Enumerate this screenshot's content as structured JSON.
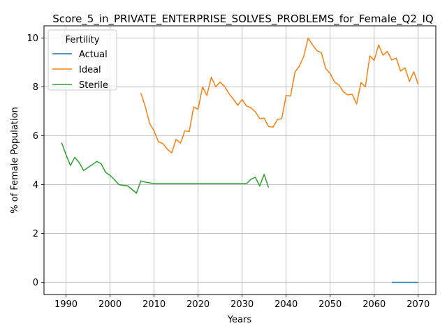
{
  "chart_data": {
    "type": "line",
    "title": "Score_5_in_PRIVATE_ENTERPRISE_SOLVES_PROBLEMS_for_Female_Q2_IQ",
    "xlabel": "Years",
    "ylabel": "% of Female Population",
    "xlim": [
      1985,
      2074
    ],
    "ylim": [
      -0.5,
      10.5
    ],
    "x_ticks": [
      1990,
      2000,
      2010,
      2020,
      2030,
      2040,
      2050,
      2060,
      2070
    ],
    "y_ticks": [
      0,
      2,
      4,
      6,
      8,
      10
    ],
    "grid": true,
    "legend": {
      "title": "Fertility",
      "placement": "top-left"
    },
    "series": [
      {
        "name": "Actual",
        "color": "#1f77b4",
        "points": [
          [
            2064,
            0.0
          ],
          [
            2070,
            0.0
          ]
        ]
      },
      {
        "name": "Ideal",
        "color": "#ff7f0e",
        "points": [
          [
            2007,
            7.75
          ],
          [
            2008,
            7.2
          ],
          [
            2009,
            6.5
          ],
          [
            2010,
            6.2
          ],
          [
            2011,
            5.75
          ],
          [
            2012,
            5.68
          ],
          [
            2013,
            5.45
          ],
          [
            2014,
            5.3
          ],
          [
            2015,
            5.85
          ],
          [
            2016,
            5.7
          ],
          [
            2017,
            6.2
          ],
          [
            2018,
            6.18
          ],
          [
            2019,
            7.18
          ],
          [
            2020,
            7.08
          ],
          [
            2021,
            8.0
          ],
          [
            2022,
            7.65
          ],
          [
            2023,
            8.4
          ],
          [
            2024,
            8.0
          ],
          [
            2025,
            8.2
          ],
          [
            2026,
            8.02
          ],
          [
            2027,
            7.73
          ],
          [
            2028,
            7.5
          ],
          [
            2029,
            7.25
          ],
          [
            2030,
            7.48
          ],
          [
            2031,
            7.22
          ],
          [
            2032,
            7.15
          ],
          [
            2033,
            6.98
          ],
          [
            2034,
            6.7
          ],
          [
            2035,
            6.72
          ],
          [
            2036,
            6.38
          ],
          [
            2037,
            6.35
          ],
          [
            2038,
            6.66
          ],
          [
            2039,
            6.7
          ],
          [
            2040,
            7.65
          ],
          [
            2041,
            7.62
          ],
          [
            2042,
            8.6
          ],
          [
            2043,
            8.85
          ],
          [
            2044,
            9.25
          ],
          [
            2045,
            10.0
          ],
          [
            2046,
            9.72
          ],
          [
            2047,
            9.48
          ],
          [
            2048,
            9.4
          ],
          [
            2049,
            8.75
          ],
          [
            2050,
            8.55
          ],
          [
            2051,
            8.2
          ],
          [
            2052,
            8.08
          ],
          [
            2053,
            7.8
          ],
          [
            2054,
            7.67
          ],
          [
            2055,
            7.7
          ],
          [
            2056,
            7.3
          ],
          [
            2057,
            8.18
          ],
          [
            2058,
            8.0
          ],
          [
            2059,
            9.27
          ],
          [
            2060,
            9.08
          ],
          [
            2061,
            9.72
          ],
          [
            2062,
            9.3
          ],
          [
            2063,
            9.45
          ],
          [
            2064,
            9.1
          ],
          [
            2065,
            9.18
          ],
          [
            2066,
            8.65
          ],
          [
            2067,
            8.78
          ],
          [
            2068,
            8.22
          ],
          [
            2069,
            8.62
          ],
          [
            2070,
            8.1
          ]
        ]
      },
      {
        "name": "Sterile",
        "color": "#2ca02c",
        "points": [
          [
            1989,
            5.72
          ],
          [
            1990,
            5.22
          ],
          [
            1991,
            4.78
          ],
          [
            1992,
            5.12
          ],
          [
            1993,
            4.9
          ],
          [
            1994,
            4.58
          ],
          [
            1995,
            4.7
          ],
          [
            1996,
            4.82
          ],
          [
            1997,
            4.95
          ],
          [
            1998,
            4.85
          ],
          [
            1999,
            4.5
          ],
          [
            2000,
            4.38
          ],
          [
            2001,
            4.2
          ],
          [
            2002,
            4.0
          ],
          [
            2003,
            3.97
          ],
          [
            2004,
            3.95
          ],
          [
            2005,
            3.8
          ],
          [
            2006,
            3.65
          ],
          [
            2007,
            4.15
          ],
          [
            2008,
            4.1
          ],
          [
            2009,
            4.07
          ],
          [
            2010,
            4.04
          ],
          [
            2015,
            4.04
          ],
          [
            2020,
            4.04
          ],
          [
            2025,
            4.04
          ],
          [
            2031,
            4.04
          ],
          [
            2032,
            4.22
          ],
          [
            2033,
            4.3
          ],
          [
            2034,
            3.94
          ],
          [
            2035,
            4.42
          ],
          [
            2036,
            3.88
          ]
        ]
      }
    ]
  }
}
